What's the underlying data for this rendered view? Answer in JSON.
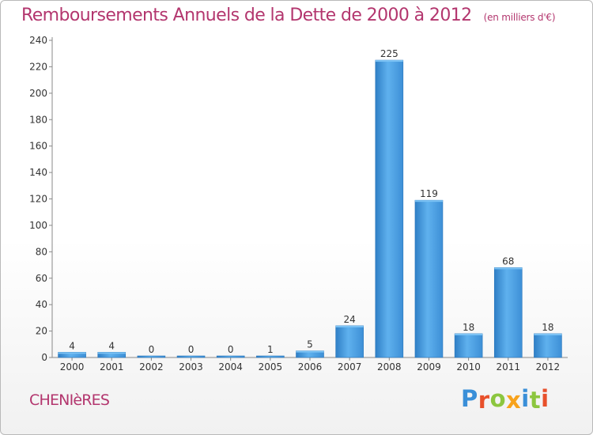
{
  "header": {
    "title": "Remboursements Annuels de la Dette de 2000 à 2012",
    "subtitle": "(en milliers d'€)"
  },
  "commune": "CHENIèRES",
  "logo": {
    "text": "Proxiti",
    "colors": [
      "#3a8fd8",
      "#e8502b",
      "#8cc63f",
      "#f7a21b",
      "#3a8fd8",
      "#8cc63f",
      "#e8502b"
    ]
  },
  "chart_data": {
    "type": "bar",
    "categories": [
      "2000",
      "2001",
      "2002",
      "2003",
      "2004",
      "2005",
      "2006",
      "2007",
      "2008",
      "2009",
      "2010",
      "2011",
      "2012"
    ],
    "values": [
      4,
      4,
      0,
      0,
      0,
      1,
      5,
      24,
      225,
      119,
      18,
      68,
      18
    ],
    "value_labels": [
      "4",
      "4",
      "0",
      "0",
      "0",
      "1",
      "5",
      "24",
      "225",
      "119",
      "18",
      "68",
      "18"
    ],
    "yticks": [
      0,
      20,
      40,
      60,
      80,
      100,
      120,
      140,
      160,
      180,
      200,
      220,
      240
    ],
    "ylim": [
      0,
      240
    ],
    "xlabel": "",
    "ylabel": "",
    "grid": false,
    "bar_color": "#3d8fd6",
    "bar_color_light": "#5fb1ee"
  }
}
